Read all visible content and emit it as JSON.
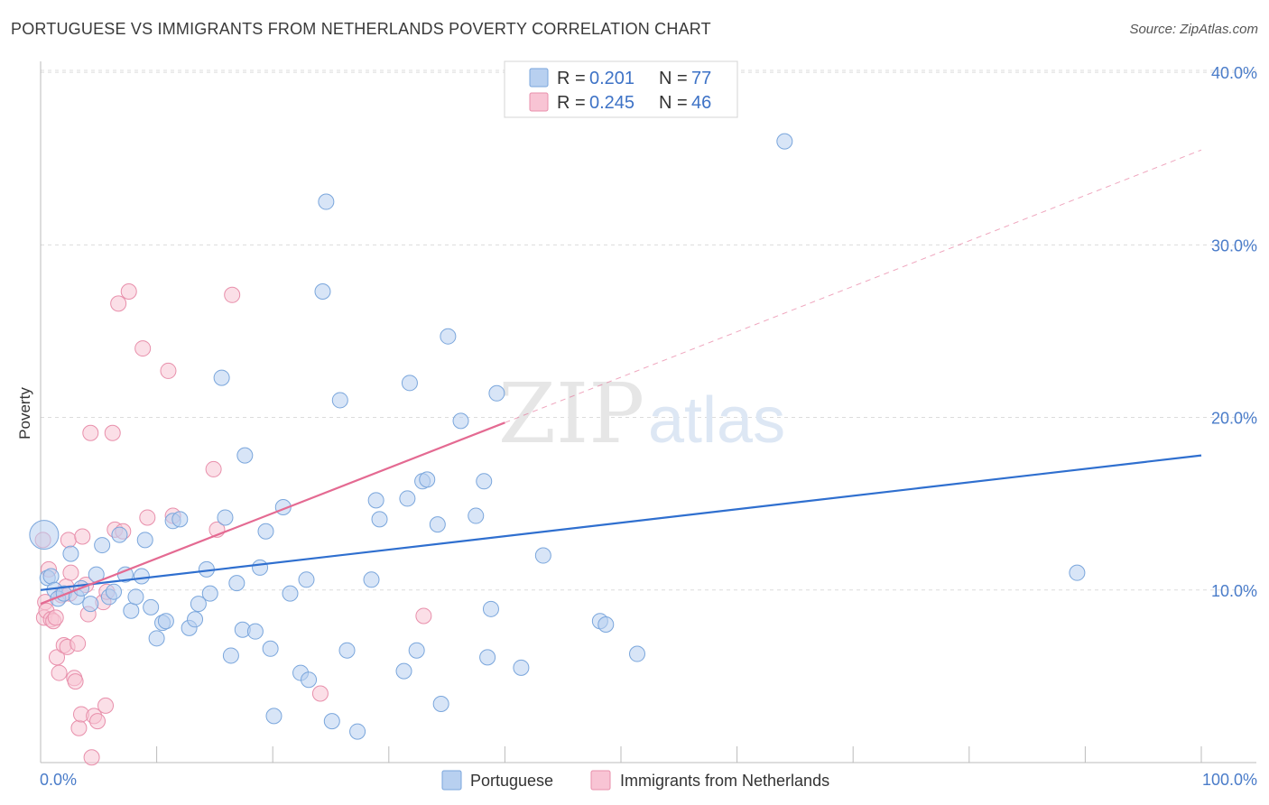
{
  "header": {
    "title": "PORTUGUESE VS IMMIGRANTS FROM NETHERLANDS POVERTY CORRELATION CHART",
    "source": "Source: ZipAtlas.com"
  },
  "watermark": {
    "zip": "ZIP",
    "atlas": "atlas"
  },
  "colors": {
    "blue_fill": "#b8d0f0",
    "blue_stroke": "#7aa6dc",
    "blue_line": "#2f6fcf",
    "pink_fill": "#f8c4d4",
    "pink_stroke": "#e88fab",
    "pink_line": "#e46a92",
    "grid": "#dcdcdc",
    "tick_text": "#4a7cc9"
  },
  "legend": {
    "rows": [
      {
        "r_label": "R =",
        "r_value": "0.201",
        "n_label": "N =",
        "n_value": "77"
      },
      {
        "r_label": "R =",
        "r_value": "0.245",
        "n_label": "N =",
        "n_value": "46"
      }
    ]
  },
  "chart_data": {
    "type": "scatter",
    "title": "PORTUGUESE VS IMMIGRANTS FROM NETHERLANDS POVERTY CORRELATION CHART",
    "xlabel": "",
    "ylabel": "Poverty",
    "xlim": [
      0,
      100
    ],
    "ylim": [
      0,
      41
    ],
    "x_tick_labels": [
      "0.0%",
      "100.0%"
    ],
    "y_ticks": [
      10,
      20,
      30,
      40
    ],
    "y_tick_labels": [
      "10.0%",
      "20.0%",
      "30.0%",
      "40.0%"
    ],
    "x_minor_ticks": [
      0,
      10,
      20,
      30,
      40,
      50,
      60,
      70,
      80,
      90,
      100
    ],
    "legend_labels": [
      "Portuguese",
      "Immigrants from Netherlands"
    ],
    "series": [
      {
        "name": "Portuguese",
        "color": "blue",
        "r": 0.201,
        "n": 77,
        "trend": {
          "x0": 0,
          "y0": 10.0,
          "x1": 100,
          "y1": 17.8
        },
        "points": [
          [
            0.3,
            13.2
          ],
          [
            0.6,
            10.7
          ],
          [
            0.9,
            10.8
          ],
          [
            1.2,
            10.0
          ],
          [
            1.5,
            9.5
          ],
          [
            2.0,
            9.8
          ],
          [
            2.6,
            12.1
          ],
          [
            3.1,
            9.6
          ],
          [
            3.5,
            10.1
          ],
          [
            4.3,
            9.2
          ],
          [
            4.8,
            10.9
          ],
          [
            5.3,
            12.6
          ],
          [
            5.9,
            9.6
          ],
          [
            6.3,
            9.9
          ],
          [
            6.8,
            13.2
          ],
          [
            7.3,
            10.9
          ],
          [
            7.8,
            8.8
          ],
          [
            8.2,
            9.6
          ],
          [
            8.7,
            10.8
          ],
          [
            9.0,
            12.9
          ],
          [
            9.5,
            9.0
          ],
          [
            10.0,
            7.2
          ],
          [
            10.5,
            8.1
          ],
          [
            10.8,
            8.2
          ],
          [
            11.4,
            14.0
          ],
          [
            12.0,
            14.1
          ],
          [
            12.8,
            7.8
          ],
          [
            13.3,
            8.3
          ],
          [
            13.6,
            9.2
          ],
          [
            14.3,
            11.2
          ],
          [
            14.6,
            9.8
          ],
          [
            15.6,
            22.3
          ],
          [
            15.9,
            14.2
          ],
          [
            16.4,
            6.2
          ],
          [
            16.9,
            10.4
          ],
          [
            17.4,
            7.7
          ],
          [
            17.6,
            17.8
          ],
          [
            18.5,
            7.6
          ],
          [
            18.9,
            11.3
          ],
          [
            19.4,
            13.4
          ],
          [
            19.8,
            6.6
          ],
          [
            20.1,
            2.7
          ],
          [
            20.9,
            14.8
          ],
          [
            21.5,
            9.8
          ],
          [
            22.4,
            5.2
          ],
          [
            22.9,
            10.6
          ],
          [
            23.1,
            4.8
          ],
          [
            24.3,
            27.3
          ],
          [
            24.6,
            32.5
          ],
          [
            25.1,
            2.4
          ],
          [
            25.8,
            21.0
          ],
          [
            26.4,
            6.5
          ],
          [
            27.3,
            1.8
          ],
          [
            28.5,
            10.6
          ],
          [
            28.9,
            15.2
          ],
          [
            29.2,
            14.1
          ],
          [
            31.3,
            5.3
          ],
          [
            31.6,
            15.3
          ],
          [
            31.8,
            22.0
          ],
          [
            32.4,
            6.5
          ],
          [
            32.9,
            16.3
          ],
          [
            33.3,
            16.4
          ],
          [
            34.2,
            13.8
          ],
          [
            34.5,
            3.4
          ],
          [
            35.1,
            24.7
          ],
          [
            36.2,
            19.8
          ],
          [
            37.5,
            14.3
          ],
          [
            38.2,
            16.3
          ],
          [
            38.5,
            6.1
          ],
          [
            38.8,
            8.9
          ],
          [
            39.3,
            21.4
          ],
          [
            41.4,
            5.5
          ],
          [
            43.3,
            12.0
          ],
          [
            48.2,
            8.2
          ],
          [
            48.7,
            8.0
          ],
          [
            51.4,
            6.3
          ],
          [
            64.1,
            36.0
          ],
          [
            89.3,
            11.0
          ]
        ]
      },
      {
        "name": "Immigrants from Netherlands",
        "color": "pink",
        "r": 0.245,
        "n": 46,
        "trend": {
          "x0": 0,
          "y0": 9.2,
          "x1": 40,
          "y1": 19.7,
          "dash_x1": 100,
          "dash_y1": 35.5
        },
        "points": [
          [
            0.2,
            12.9
          ],
          [
            0.3,
            8.4
          ],
          [
            0.4,
            9.3
          ],
          [
            0.5,
            8.8
          ],
          [
            0.7,
            11.2
          ],
          [
            0.9,
            8.3
          ],
          [
            1.1,
            8.2
          ],
          [
            1.3,
            8.4
          ],
          [
            1.4,
            6.1
          ],
          [
            1.6,
            5.2
          ],
          [
            1.8,
            9.7
          ],
          [
            2.0,
            6.8
          ],
          [
            2.2,
            10.2
          ],
          [
            2.3,
            6.7
          ],
          [
            2.4,
            12.9
          ],
          [
            2.5,
            9.8
          ],
          [
            2.6,
            11.0
          ],
          [
            2.9,
            4.9
          ],
          [
            3.0,
            4.7
          ],
          [
            3.2,
            6.9
          ],
          [
            3.3,
            2.0
          ],
          [
            3.5,
            2.8
          ],
          [
            3.6,
            13.1
          ],
          [
            3.9,
            10.3
          ],
          [
            4.1,
            8.6
          ],
          [
            4.3,
            19.1
          ],
          [
            4.6,
            2.7
          ],
          [
            4.9,
            2.4
          ],
          [
            5.4,
            9.3
          ],
          [
            5.6,
            3.3
          ],
          [
            5.7,
            9.9
          ],
          [
            6.2,
            19.1
          ],
          [
            6.4,
            13.5
          ],
          [
            6.7,
            26.6
          ],
          [
            7.1,
            13.4
          ],
          [
            7.6,
            27.3
          ],
          [
            8.8,
            24.0
          ],
          [
            9.2,
            14.2
          ],
          [
            11.0,
            22.7
          ],
          [
            11.4,
            14.3
          ],
          [
            14.9,
            17.0
          ],
          [
            15.2,
            13.5
          ],
          [
            16.5,
            27.1
          ],
          [
            24.1,
            4.0
          ],
          [
            33.0,
            8.5
          ],
          [
            4.4,
            0.3
          ]
        ]
      }
    ]
  }
}
